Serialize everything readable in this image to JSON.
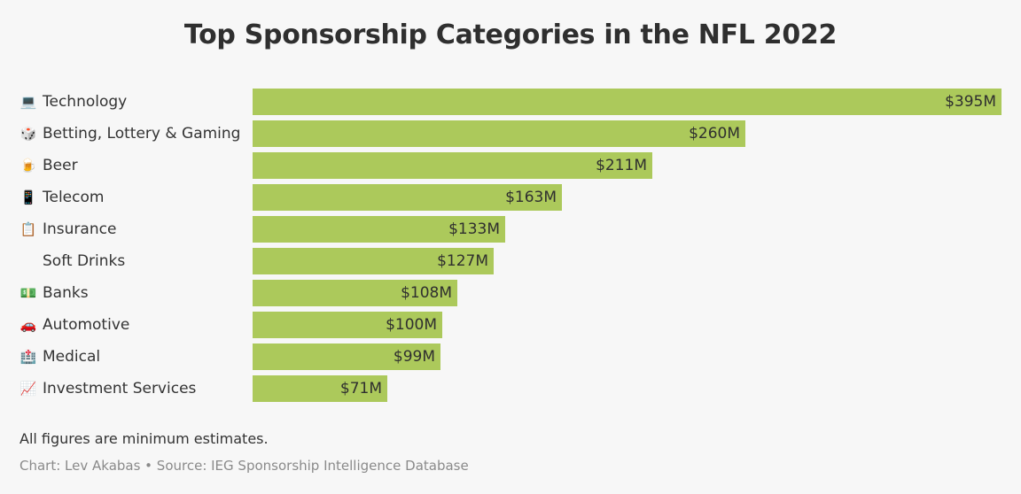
{
  "title": "Top Sponsorship Categories in the NFL 2022",
  "note": "All figures are minimum estimates.",
  "source": "Chart: Lev Akabas • Source: IEG Sponsorship Intelligence Database",
  "colors": {
    "bar": "#acc95b",
    "background": "#f7f7f7"
  },
  "chart_data": {
    "type": "bar",
    "orientation": "horizontal",
    "title": "Top Sponsorship Categories in the NFL 2022",
    "categories": [
      "Technology",
      "Betting, Lottery & Gaming",
      "Beer",
      "Telecom",
      "Insurance",
      "Soft Drinks",
      "Banks",
      "Automotive",
      "Medical",
      "Investment Services"
    ],
    "icons": [
      "laptop-icon",
      "dice-icon",
      "beer-icon",
      "phone-icon",
      "clipboard-icon",
      "",
      "money-icon",
      "car-icon",
      "medical-icon",
      "chart-icon"
    ],
    "values": [
      395,
      260,
      211,
      163,
      133,
      127,
      108,
      100,
      99,
      71
    ],
    "value_labels": [
      "$395M",
      "$260M",
      "$211M",
      "$163M",
      "$133M",
      "$127M",
      "$108M",
      "$100M",
      "$99M",
      "$71M"
    ],
    "unit": "$M",
    "xlim": [
      0,
      395
    ],
    "grid": false,
    "legend": "none"
  }
}
